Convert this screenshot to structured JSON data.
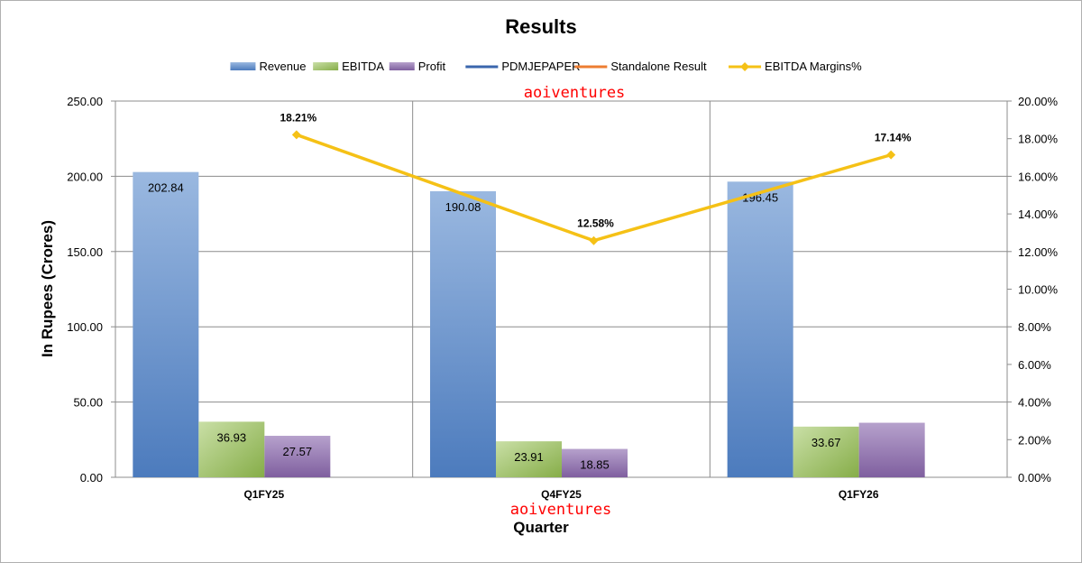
{
  "chart_data": {
    "type": "bar",
    "title": "Results",
    "xlabel": "Quarter",
    "ylabel": "In Rupees (Crores)",
    "categories": [
      "Q1FY25",
      "Q4FY25",
      "Q1FY26"
    ],
    "ylim": [
      0,
      250
    ],
    "y_ticks": [
      "0.00",
      "50.00",
      "100.00",
      "150.00",
      "200.00",
      "250.00"
    ],
    "y2lim": [
      0,
      20
    ],
    "y2_ticks": [
      "0.00%",
      "2.00%",
      "4.00%",
      "6.00%",
      "8.00%",
      "10.00%",
      "12.00%",
      "14.00%",
      "16.00%",
      "18.00%",
      "20.00%"
    ],
    "series": [
      {
        "name": "Revenue",
        "kind": "bar",
        "values": [
          202.84,
          190.08,
          196.45
        ],
        "labels": [
          "202.84",
          "190.08",
          "196.45"
        ],
        "color": "#5b87c3"
      },
      {
        "name": "EBITDA",
        "kind": "bar",
        "values": [
          36.93,
          23.91,
          33.67
        ],
        "labels": [
          "36.93",
          "23.91",
          "33.67"
        ],
        "color": "#8fb351"
      },
      {
        "name": "Profit",
        "kind": "bar",
        "values": [
          27.57,
          18.85,
          36.24
        ],
        "labels": [
          "27.57",
          "18.85",
          ""
        ],
        "color": "#8a6aa8"
      },
      {
        "name": "PDMJEPAPER",
        "kind": "line-legend-only",
        "color": "#3a66ad"
      },
      {
        "name": "Standalone Result",
        "kind": "line-legend-only",
        "color": "#ed7d31"
      },
      {
        "name": "EBITDA Margins%",
        "kind": "line",
        "axis": "secondary",
        "values": [
          18.21,
          12.58,
          17.14
        ],
        "labels": [
          "18.21%",
          "12.58%",
          "17.14%"
        ],
        "color": "#f5c116"
      }
    ],
    "grid": true,
    "legend_position": "top"
  },
  "watermarks": [
    "aoiventures",
    "aoiventures"
  ]
}
